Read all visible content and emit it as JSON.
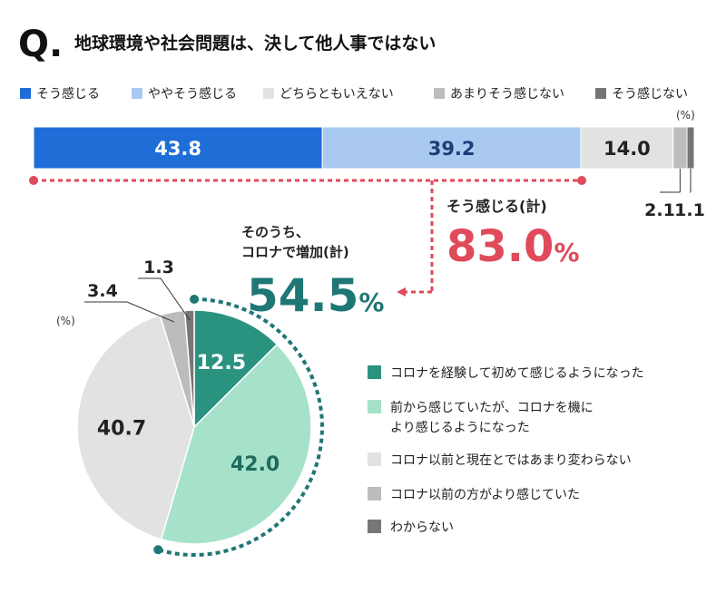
{
  "header": {
    "q_letter": "Q.",
    "title": "地球環境や社会問題は、決して他人事ではない"
  },
  "colors": {
    "c1": "#1f6ed8",
    "c2": "#a9c9f0",
    "c3": "#e2e2e2",
    "c4": "#bdbdbd",
    "c5": "#757575",
    "pie1": "#2a9380",
    "pie2": "#a5e2c9",
    "pie3": "#e2e2e2",
    "pie4": "#bcbcbc",
    "pie5": "#777777",
    "accent_red": "#e04a5a",
    "accent_teal": "#1f7775"
  },
  "chart_data": [
    {
      "type": "bar",
      "orientation": "horizontal-stacked",
      "unit_label": "(%)",
      "categories": [
        "そう感じる",
        "ややそう感じる",
        "どちらともいえない",
        "あまりそう感じない",
        "そう感じない"
      ],
      "values": [
        43.8,
        39.2,
        14.0,
        2.1,
        1.1
      ],
      "value_labels": [
        "43.8",
        "39.2",
        "14.0",
        "2.1",
        "1.1"
      ],
      "annotation": {
        "label": "そう感じる(計)",
        "value": "83.0",
        "unit": "%"
      }
    },
    {
      "type": "pie",
      "unit_label": "(%)",
      "categories": [
        "コロナを経験して初めて感じるようになった",
        "前から感じていたが、コロナを機により感じるようになった",
        "コロナ以前と現在とではあまり変わらない",
        "コロナ以前の方がより感じていた",
        "わからない"
      ],
      "legend_lines": [
        [
          "コロナを経験して初めて感じるようになった"
        ],
        [
          "前から感じていたが、コロナを機に",
          "より感じるようになった"
        ],
        [
          "コロナ以前と現在とではあまり変わらない"
        ],
        [
          "コロナ以前の方がより感じていた"
        ],
        [
          "わからない"
        ]
      ],
      "values": [
        12.5,
        42.0,
        40.7,
        3.4,
        1.3
      ],
      "value_labels": [
        "12.5",
        "42.0",
        "40.7",
        "3.4",
        "1.3"
      ],
      "annotation": {
        "label_line1": "そのうち、",
        "label_line2": "コロナで増加(計)",
        "value": "54.5",
        "unit": "%"
      }
    }
  ]
}
